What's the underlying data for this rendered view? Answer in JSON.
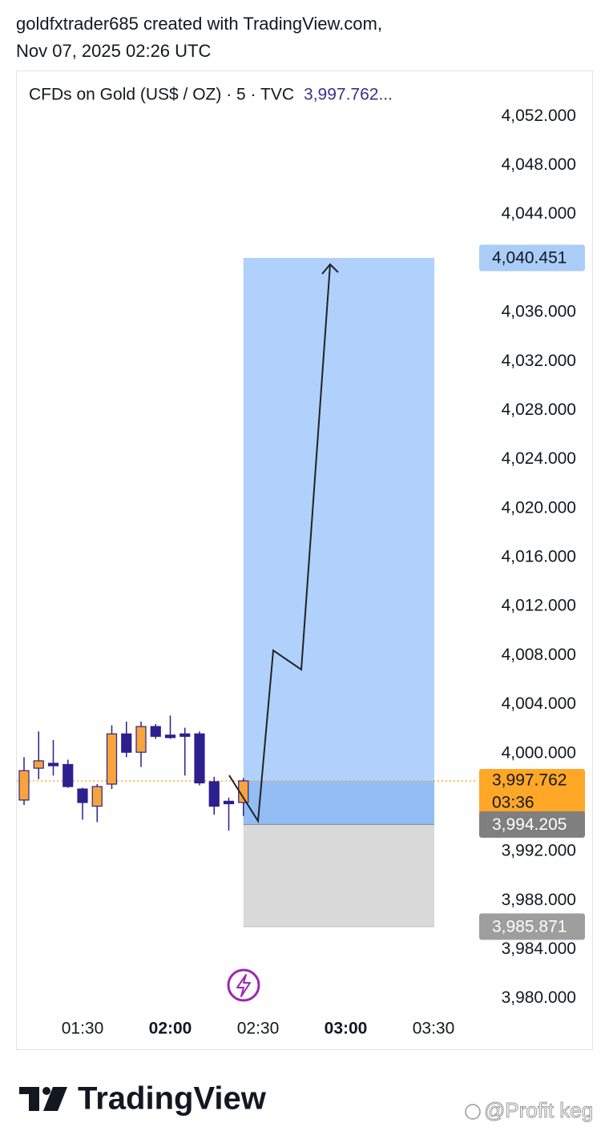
{
  "header": {
    "line1": "goldfxtrader685 created with TradingView.com,",
    "line2": "Nov 07, 2025 02:26 UTC"
  },
  "chart_data": {
    "type": "candlestick",
    "title": "CFDs on Gold (US$ / OZ) · 5 · TVC",
    "legend_value": "3,997.762...",
    "x": [
      null,
      null,
      null,
      null,
      "01:30",
      null,
      null,
      null,
      null,
      null,
      "02:00",
      null,
      null,
      null,
      null,
      null,
      "02:30",
      null,
      null,
      null,
      null,
      null,
      "03:00",
      null,
      null,
      null,
      null,
      null,
      "03:30"
    ],
    "x_bold": [
      10,
      22
    ],
    "open": [
      3996.2,
      3998.8,
      3999.2,
      3999.1,
      3997.1,
      3995.7,
      3997.5,
      4001.6,
      4000.1,
      4002.2,
      4001.5,
      4001.6,
      4001.6,
      3997.7,
      3996.1,
      3996.0,
      null,
      null,
      null,
      null,
      null,
      null,
      null,
      null,
      null,
      null,
      null,
      null,
      null
    ],
    "high": [
      3999.7,
      4001.8,
      4001.1,
      3999.5,
      3997.2,
      3997.5,
      4002.3,
      4002.6,
      4002.6,
      4002.4,
      4003.1,
      4002.1,
      4001.8,
      3998.1,
      3996.4,
      3998.0,
      null,
      null,
      null,
      null,
      null,
      null,
      null,
      null,
      null,
      null,
      null,
      null,
      null
    ],
    "low": [
      3995.8,
      3997.9,
      3998.2,
      3997.2,
      3994.6,
      3994.4,
      3997.1,
      3999.7,
      3998.9,
      4001.2,
      4001.2,
      3998.2,
      3997.4,
      3995.0,
      3993.7,
      3994.9,
      null,
      null,
      null,
      null,
      null,
      null,
      null,
      null,
      null,
      null,
      null,
      null,
      null
    ],
    "close": [
      3998.6,
      3999.4,
      3999.0,
      3997.3,
      3996.0,
      3997.3,
      4001.6,
      4000.1,
      4002.2,
      4001.4,
      4001.3,
      4001.4,
      3997.6,
      3995.7,
      3995.9,
      3997.762,
      null,
      null,
      null,
      null,
      null,
      null,
      null,
      null,
      null,
      null,
      null,
      null,
      null
    ],
    "colors": {
      "up": "#f7a53b",
      "down": "#2e1f8f"
    },
    "ylim": [
      3978.8,
      4053
    ],
    "yticks": [
      {
        "value": 4052,
        "label": "4,052.000"
      },
      {
        "value": 4048,
        "label": "4,048.000"
      },
      {
        "value": 4044,
        "label": "4,044.000"
      },
      {
        "value": 4036,
        "label": "4,036.000"
      },
      {
        "value": 4032,
        "label": "4,032.000"
      },
      {
        "value": 4028,
        "label": "4,028.000"
      },
      {
        "value": 4024,
        "label": "4,024.000"
      },
      {
        "value": 4020,
        "label": "4,020.000"
      },
      {
        "value": 4016,
        "label": "4,016.000"
      },
      {
        "value": 4012,
        "label": "4,012.000"
      },
      {
        "value": 4008,
        "label": "4,008.000"
      },
      {
        "value": 4004,
        "label": "4,004.000"
      },
      {
        "value": 4000,
        "label": "4,000.000"
      },
      {
        "value": 3992,
        "label": "3,992.000"
      },
      {
        "value": 3988,
        "label": "3,988.000"
      },
      {
        "value": 3984,
        "label": "3,984.000"
      },
      {
        "value": 3980,
        "label": "3,980.000"
      }
    ],
    "grid": false,
    "last_price": {
      "value": 3997.762,
      "label": "3,997.762",
      "countdown": "03:36",
      "color": "#ffa726"
    },
    "position": {
      "start_index": 15,
      "end_index": 28,
      "target": {
        "value": 4040.451,
        "label": "4,040.451"
      },
      "entry": {
        "value": 3994.205,
        "label": "3,994.205"
      },
      "stop": {
        "value": 3985.871,
        "label": "3,985.871"
      }
    },
    "watermark": "@Profit keg",
    "brand": "TradingView"
  }
}
